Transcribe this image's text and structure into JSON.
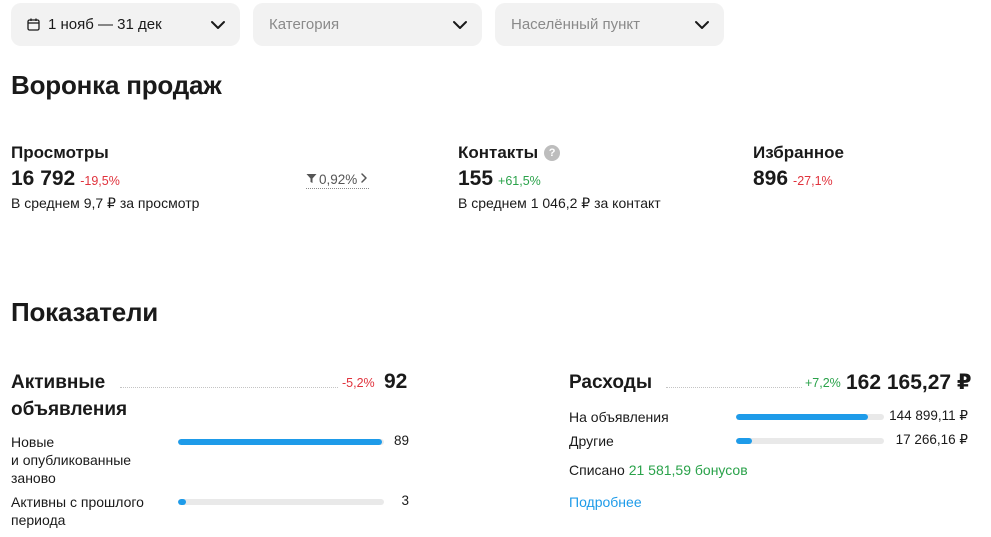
{
  "filters": {
    "date": "1 нояб — 31 дек",
    "category_placeholder": "Категория",
    "location_placeholder": "Населённый пункт"
  },
  "funnel": {
    "title": "Воронка продаж",
    "views": {
      "label": "Просмотры",
      "value": "16 792",
      "delta": "-19,5%",
      "sub": "В среднем 9,7 ₽ за просмотр"
    },
    "conversion": "0,92%",
    "contacts": {
      "label": "Контакты",
      "value": "155",
      "delta": "+61,5%",
      "sub": "В среднем 1 046,2 ₽ за контакт"
    },
    "favorites": {
      "label": "Избранное",
      "value": "896",
      "delta": "-27,1%"
    }
  },
  "metrics": {
    "title": "Показатели",
    "active": {
      "title_line1": "Активные",
      "title_line2": "объявления",
      "delta": "-5,2%",
      "value": "92",
      "rows": [
        {
          "label_lines": [
            "Новые",
            "и опубликованные",
            "заново"
          ],
          "value": "89",
          "fill": 0.99
        },
        {
          "label_lines": [
            "Активны с прошлого",
            "периода"
          ],
          "value": "3",
          "fill": 0.04
        }
      ]
    },
    "expenses": {
      "title": "Расходы",
      "delta": "+7,2%",
      "value": "162 165,27 ₽",
      "rows": [
        {
          "label": "На объявления",
          "value": "144 899,11 ₽",
          "fill": 0.89
        },
        {
          "label": "Другие",
          "value": "17 266,16 ₽",
          "fill": 0.11
        }
      ],
      "written_off_prefix": "Списано",
      "written_off_bonus": "21 581,59 бонусов",
      "more_link": "Подробнее"
    }
  },
  "colors": {
    "accent": "#1e9be9",
    "negative": "#e0323c",
    "positive": "#2aa24a"
  }
}
